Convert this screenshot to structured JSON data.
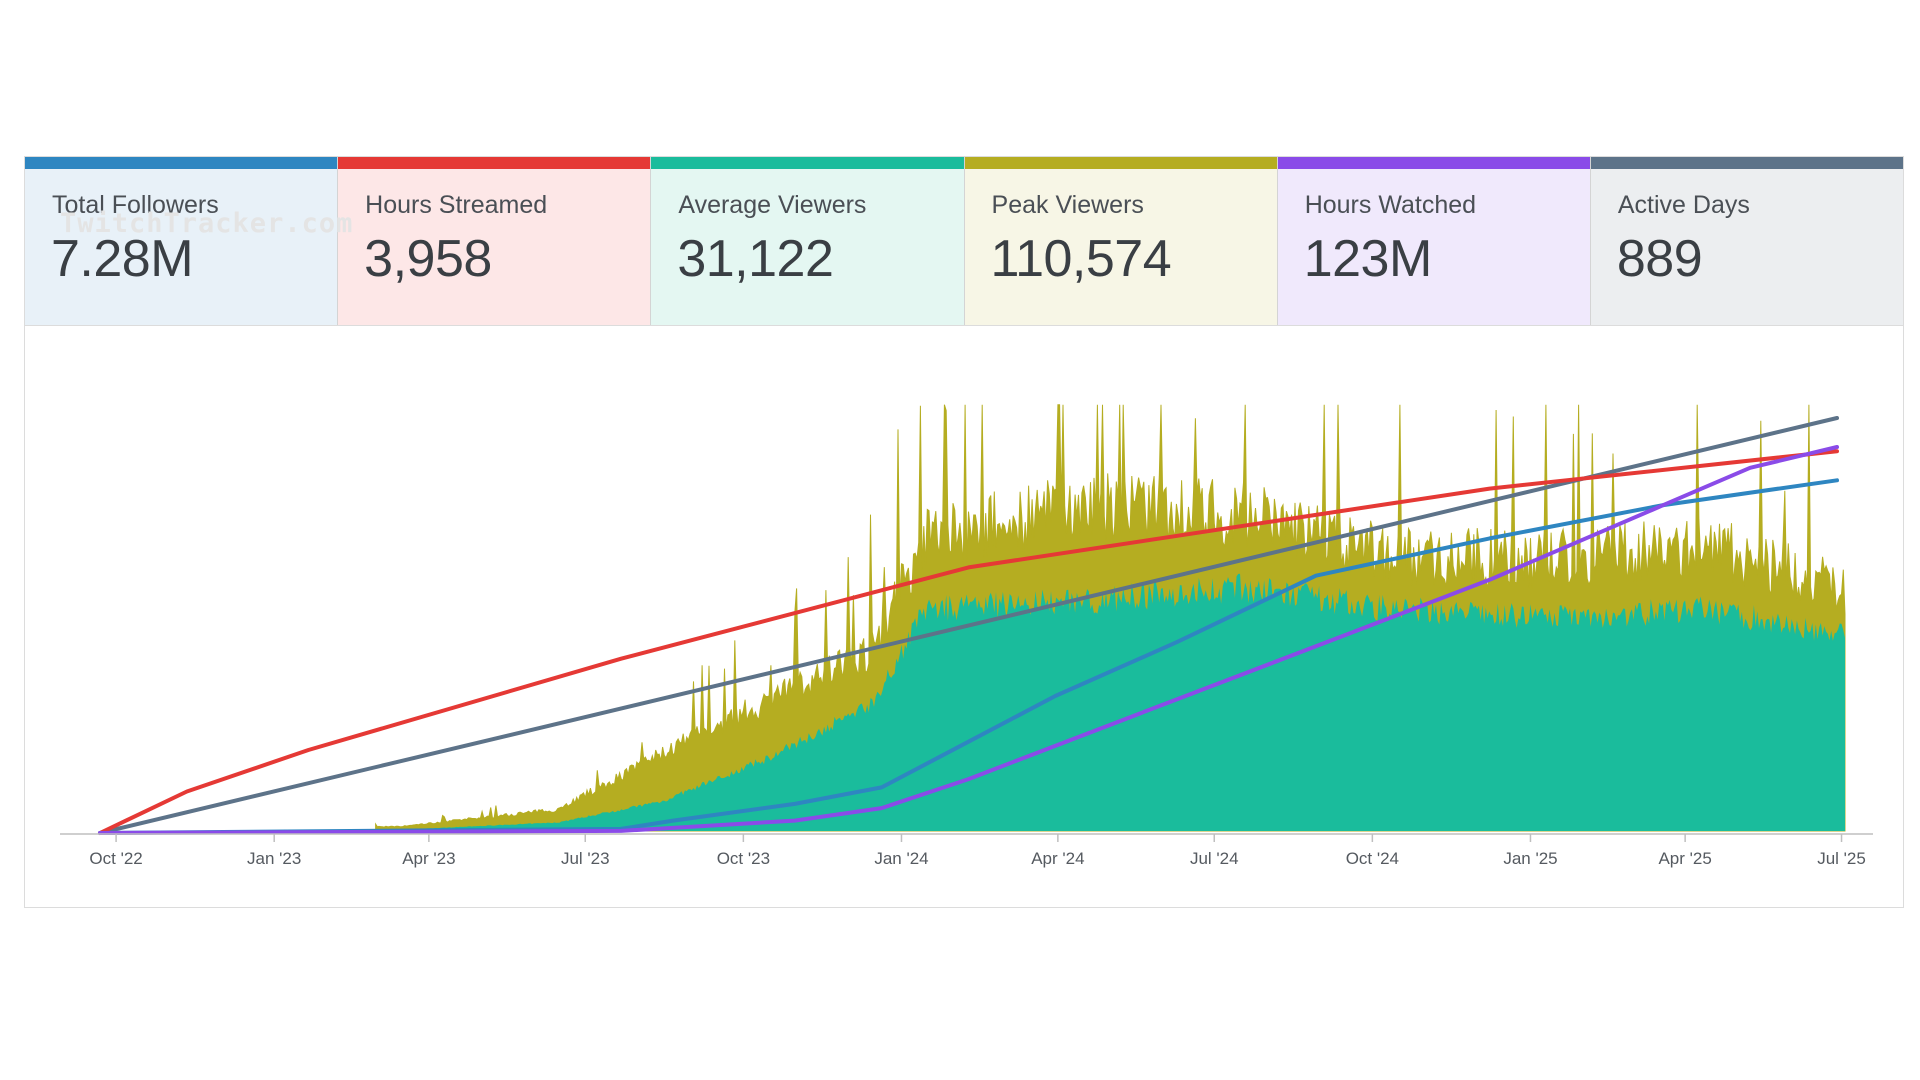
{
  "stats": [
    {
      "label": "Total Followers",
      "value": "7.28M",
      "color": "#2e86c1",
      "bg": "#e8f1f8"
    },
    {
      "label": "Hours Streamed",
      "value": "3,958",
      "color": "#e53935",
      "bg": "#fde7e7"
    },
    {
      "label": "Average Viewers",
      "value": "31,122",
      "color": "#1abc9c",
      "bg": "#e4f7f2"
    },
    {
      "label": "Peak Viewers",
      "value": "110,574",
      "color": "#b5ad21",
      "bg": "#f7f6e6"
    },
    {
      "label": "Hours Watched",
      "value": "123M",
      "color": "#8a4be8",
      "bg": "#f0e9fc"
    },
    {
      "label": "Active Days",
      "value": "889",
      "color": "#5d7389",
      "bg": "#eceef0"
    }
  ],
  "watermark": "TwitchTracker.com",
  "chart_data": {
    "type": "area",
    "x_ticks": [
      "Oct '22",
      "Jan '23",
      "Apr '23",
      "Jul '23",
      "Oct '23",
      "Jan '24",
      "Apr '24",
      "Jul '24",
      "Oct '24",
      "Jan '25",
      "Apr '25",
      "Jul '25"
    ],
    "x_range": [
      "2022-09-10",
      "2025-07-10"
    ],
    "grid": false,
    "legend": "none",
    "series": [
      {
        "kind": "area",
        "color": "#1abc9c",
        "values_approx_monthly": [
          {
            "x": "2023-03",
            "y": 0.3
          },
          {
            "x": "2023-06",
            "y": 2
          },
          {
            "x": "2023-08",
            "y": 7
          },
          {
            "x": "2023-10",
            "y": 17
          },
          {
            "x": "2023-12",
            "y": 30
          },
          {
            "x": "2024-01",
            "y": 52
          },
          {
            "x": "2024-04",
            "y": 54
          },
          {
            "x": "2024-07",
            "y": 57
          },
          {
            "x": "2024-10",
            "y": 52
          },
          {
            "x": "2025-01",
            "y": 50
          },
          {
            "x": "2025-04",
            "y": 52
          },
          {
            "x": "2025-07",
            "y": 45
          }
        ]
      },
      {
        "kind": "area",
        "color": "#b5ad21",
        "values_approx_monthly": [
          {
            "x": "2023-03",
            "y": 1
          },
          {
            "x": "2023-06",
            "y": 5
          },
          {
            "x": "2023-08",
            "y": 18
          },
          {
            "x": "2023-10",
            "y": 30
          },
          {
            "x": "2023-12",
            "y": 42
          },
          {
            "x": "2024-01",
            "y": 68
          },
          {
            "x": "2024-04",
            "y": 75
          },
          {
            "x": "2024-07",
            "y": 74
          },
          {
            "x": "2024-10",
            "y": 64
          },
          {
            "x": "2025-01",
            "y": 63
          },
          {
            "x": "2025-04",
            "y": 66
          },
          {
            "x": "2025-07",
            "y": 55
          }
        ]
      },
      {
        "kind": "line",
        "color": "#5d7389",
        "values": [
          [
            0,
            0
          ],
          [
            1,
            100
          ]
        ]
      },
      {
        "kind": "line",
        "color": "#e53935",
        "values": [
          [
            0,
            0
          ],
          [
            0.05,
            10
          ],
          [
            0.12,
            20
          ],
          [
            0.3,
            42
          ],
          [
            0.5,
            64
          ],
          [
            0.8,
            83
          ],
          [
            1,
            92
          ]
        ]
      },
      {
        "kind": "line",
        "color": "#2e86c1",
        "values": [
          [
            0,
            0
          ],
          [
            0.3,
            1
          ],
          [
            0.33,
            3
          ],
          [
            0.4,
            7
          ],
          [
            0.45,
            11
          ],
          [
            0.5,
            22
          ],
          [
            0.55,
            33
          ],
          [
            0.62,
            46
          ],
          [
            0.7,
            62
          ],
          [
            0.8,
            71
          ],
          [
            0.9,
            79
          ],
          [
            1,
            85
          ]
        ]
      },
      {
        "kind": "line",
        "color": "#8a4be8",
        "values": [
          [
            0,
            0
          ],
          [
            0.3,
            0.5
          ],
          [
            0.4,
            3
          ],
          [
            0.45,
            6
          ],
          [
            0.5,
            13
          ],
          [
            0.6,
            29
          ],
          [
            0.7,
            45
          ],
          [
            0.8,
            61
          ],
          [
            0.9,
            79
          ],
          [
            0.95,
            88
          ],
          [
            1,
            93
          ]
        ]
      }
    ]
  }
}
